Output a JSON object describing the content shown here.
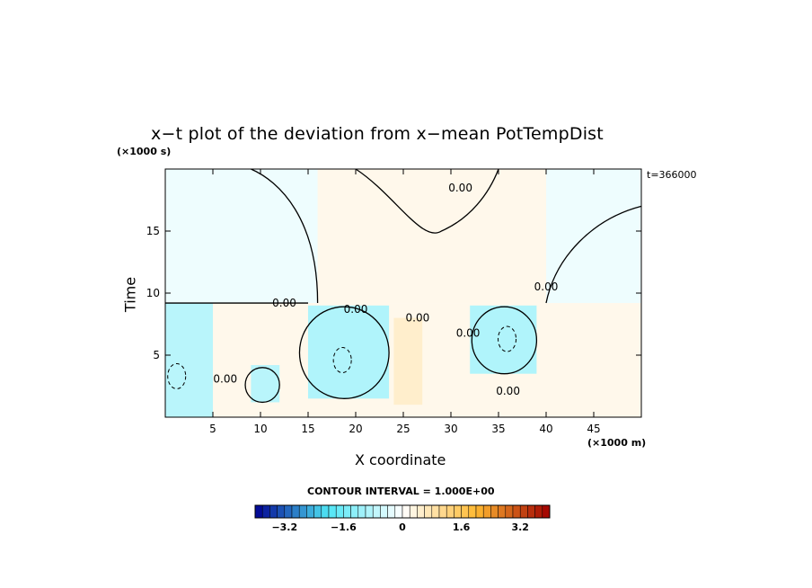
{
  "chart_data": {
    "type": "heatmap",
    "title": "x−t plot of the deviation from x−mean PotTempDist",
    "xlabel": "X coordinate",
    "ylabel": "Time",
    "x_unit": "(×1000 m)",
    "y_unit": "(×1000 s)",
    "stamp": "t=366000",
    "xlim": [
      0,
      50
    ],
    "ylim": [
      0,
      20
    ],
    "x_ticks": [
      5,
      10,
      15,
      20,
      25,
      30,
      35,
      40,
      45
    ],
    "y_ticks": [
      5,
      10,
      15
    ],
    "x_tick_labels": [
      "5",
      "10",
      "15",
      "20",
      "25",
      "30",
      "35",
      "40",
      "45"
    ],
    "y_tick_labels": [
      "5",
      "10",
      "15"
    ],
    "contour_labels": [
      {
        "text": "0.00",
        "x": 31,
        "y": 18.2
      },
      {
        "text": "0.00",
        "x": 40,
        "y": 10.2
      },
      {
        "text": "0.00",
        "x": 12.5,
        "y": 8.9
      },
      {
        "text": "0.00",
        "x": 20,
        "y": 8.4
      },
      {
        "text": "0.00",
        "x": 26.5,
        "y": 7.7
      },
      {
        "text": "0.00",
        "x": 31.8,
        "y": 6.5
      },
      {
        "text": "0.00",
        "x": 6.3,
        "y": 2.8
      },
      {
        "text": "0.00",
        "x": 36,
        "y": 1.8
      }
    ],
    "contour_interval": "CONTOUR INTERVAL = 1.000E+00",
    "colorbar": {
      "ticks": [
        "−3.2",
        "−1.6",
        "0",
        "1.6",
        "3.2"
      ],
      "min": -4.0,
      "max": 4.0,
      "levels": 40
    },
    "cells": [
      {
        "x": 0,
        "y": 9.2,
        "w": 50,
        "h": 10.8,
        "v": -0.2
      },
      {
        "x": 16,
        "y": 9.2,
        "w": 24,
        "h": 10.8,
        "v": 0.2
      },
      {
        "x": 0,
        "y": 0,
        "w": 50,
        "h": 9.2,
        "v": 0.2
      },
      {
        "x": 0,
        "y": 0,
        "w": 5,
        "h": 9.2,
        "v": -0.8
      },
      {
        "x": 15,
        "y": 1.5,
        "w": 8.5,
        "h": 7.5,
        "v": -0.9
      },
      {
        "x": 32,
        "y": 3.5,
        "w": 7,
        "h": 5.5,
        "v": -0.9
      },
      {
        "x": 9,
        "y": 1.2,
        "w": 3,
        "h": 3,
        "v": -0.8
      },
      {
        "x": 24,
        "y": 1,
        "w": 3,
        "h": 7,
        "v": 0.5
      }
    ],
    "minima": [
      {
        "x": 18.6,
        "y": 4.6,
        "v": -1.6
      },
      {
        "x": 35.9,
        "y": 6.3,
        "v": -1.4
      },
      {
        "x": 1.2,
        "y": 3.3,
        "v": -1.2
      }
    ]
  }
}
